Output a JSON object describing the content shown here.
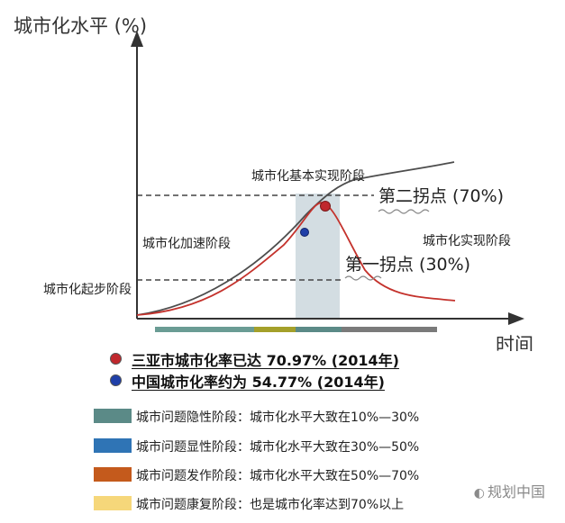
{
  "axis": {
    "y_label": "城市化水平 (%)",
    "x_label": "时间"
  },
  "stages": {
    "start": "城市化起步阶段",
    "accelerate": "城市化加速阶段",
    "basic": "城市化基本实现阶段",
    "achieve": "城市化实现阶段"
  },
  "turning_points": {
    "first": "第一拐点 (30%)",
    "second": "第二拐点 (70%)"
  },
  "points": [
    {
      "label": "三亚市城市化率已达 70.97% (2014年)",
      "color": "#c0282d"
    },
    {
      "label": "中国城市化率约为 54.77% (2014年)",
      "color": "#1f3fa8"
    }
  ],
  "phases": [
    {
      "label": "城市问题隐性阶段：城市化水平大致在10%—30%",
      "color": "#5b8a87"
    },
    {
      "label": "城市问题显性阶段：城市化水平大致在30%—50%",
      "color": "#2f74b5"
    },
    {
      "label": "城市问题发作阶段：城市化水平大致在50%—70%",
      "color": "#c45a1c"
    },
    {
      "label": "城市问题康复阶段：也是城市化率达到70%以上",
      "color": "#f6d77a"
    }
  ],
  "timeline_colors": [
    "#6a9c94",
    "#a4a02a",
    "#5b8a87",
    "#7a7a7a"
  ],
  "watermark": "规划中国"
}
